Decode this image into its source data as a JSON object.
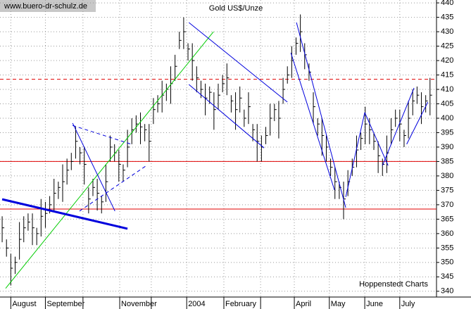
{
  "chart_data": {
    "type": "ohlc",
    "title": "Gold US$/Unze",
    "source": "www.buero-dr-schulz.de",
    "credit": "Hoppenstedt Charts",
    "color": "#000000",
    "high": [
      366,
      358,
      353,
      352,
      364,
      366,
      367,
      367,
      362,
      372,
      371,
      373,
      379,
      378,
      384,
      386,
      388,
      397,
      390,
      390,
      376,
      379,
      379,
      373,
      384,
      394,
      391,
      389,
      384,
      396,
      400,
      401,
      402,
      398,
      398,
      407,
      408,
      413,
      412,
      418,
      422,
      430,
      435,
      426,
      426,
      418,
      413,
      412,
      411,
      409,
      412,
      415,
      419,
      408,
      409,
      411,
      403,
      409,
      398,
      398,
      394,
      397,
      405,
      405,
      406,
      414,
      418,
      425,
      428,
      436,
      426,
      419,
      409,
      400,
      400,
      394,
      386,
      383,
      378,
      378,
      382,
      386,
      394,
      395,
      404,
      400,
      395,
      392,
      386,
      394,
      400,
      403,
      403,
      396,
      406,
      410,
      411,
      409,
      408,
      414
    ],
    "low": [
      357,
      352,
      342,
      346,
      351,
      357,
      361,
      356,
      356,
      359,
      362,
      367,
      368,
      372,
      371,
      377,
      382,
      386,
      384,
      377,
      367,
      373,
      368,
      367,
      371,
      385,
      385,
      378,
      378,
      383,
      391,
      395,
      391,
      392,
      385,
      398,
      402,
      402,
      406,
      405,
      413,
      424,
      424,
      420,
      413,
      409,
      407,
      401,
      405,
      396,
      403,
      409,
      408,
      402,
      396,
      402,
      397,
      398,
      392,
      385,
      385,
      391,
      394,
      399,
      393,
      405,
      412,
      414,
      422,
      423,
      417,
      413,
      398,
      394,
      387,
      385,
      380,
      372,
      372,
      365,
      373,
      380,
      383,
      389,
      391,
      391,
      389,
      381,
      380,
      381,
      391,
      397,
      392,
      390,
      393,
      401,
      405,
      398,
      402,
      401
    ],
    "close": [
      362,
      355,
      348,
      350,
      358,
      362,
      364,
      362,
      360,
      366,
      367,
      370,
      374,
      376,
      378,
      382,
      385,
      392,
      388,
      384,
      372,
      376,
      374,
      371,
      378,
      390,
      388,
      384,
      382,
      390,
      396,
      398,
      397,
      396,
      392,
      403,
      405,
      408,
      410,
      412,
      418,
      427,
      430,
      424,
      420,
      414,
      410,
      407,
      409,
      403,
      408,
      412,
      414,
      406,
      403,
      407,
      400,
      404,
      396,
      392,
      390,
      394,
      400,
      403,
      400,
      410,
      415,
      420,
      426,
      430,
      422,
      416,
      404,
      398,
      394,
      390,
      383,
      378,
      376,
      372,
      378,
      383,
      389,
      393,
      398,
      396,
      392,
      387,
      384,
      388,
      396,
      400,
      398,
      394,
      400,
      406,
      408,
      404,
      406,
      408
    ],
    "xlim": [
      -0.5,
      100.5
    ],
    "ylim": [
      338,
      441
    ],
    "xticks": [
      {
        "value": 2,
        "label": "August"
      },
      {
        "value": 10,
        "label": "September"
      },
      {
        "value": 18.7,
        "label": null
      },
      {
        "value": 27.2,
        "label": "November"
      },
      {
        "value": 34.5,
        "label": null
      },
      {
        "value": 42.7,
        "label": "2004"
      },
      {
        "value": 51.3,
        "label": "February"
      },
      {
        "value": 59.8,
        "label": null
      },
      {
        "value": 67.6,
        "label": "April"
      },
      {
        "value": 75.7,
        "label": "May"
      },
      {
        "value": 83.9,
        "label": "June"
      },
      {
        "value": 92,
        "label": "July"
      }
    ],
    "yticks": [
      340,
      345,
      350,
      355,
      360,
      365,
      370,
      375,
      380,
      385,
      390,
      395,
      400,
      405,
      410,
      415,
      420,
      425,
      430,
      435,
      440
    ],
    "grid": true,
    "hlines": [
      {
        "value": 385,
        "color": "#e00000",
        "dashed": false
      },
      {
        "value": 368.5,
        "color": "#e00000",
        "dashed": false
      },
      {
        "value": 413.5,
        "color": "#e00000",
        "dashed": true
      }
    ],
    "trendlines": [
      {
        "x": [
          0.8,
          48.9
        ],
        "y": [
          341,
          430
        ],
        "color": "#00cc00",
        "width": 1,
        "dashed": false
      },
      {
        "x": [
          0,
          29
        ],
        "y": [
          371.9,
          361.7
        ],
        "color": "#0000dd",
        "width": 3,
        "dashed": false
      },
      {
        "x": [
          16.3,
          26.1
        ],
        "y": [
          398.3,
          367.8
        ],
        "color": "#0000dd",
        "width": 1,
        "dashed": false
      },
      {
        "x": [
          43.2,
          66
        ],
        "y": [
          433.2,
          405.6
        ],
        "color": "#0000dd",
        "width": 1,
        "dashed": false
      },
      {
        "x": [
          43.2,
          60.6
        ],
        "y": [
          411.7,
          389.7
        ],
        "color": "#0000dd",
        "width": 1,
        "dashed": false
      },
      {
        "x": [
          68.1,
          79.5
        ],
        "y": [
          433.2,
          369
        ],
        "color": "#0000dd",
        "width": 1,
        "dashed": false
      },
      {
        "x": [
          66.8,
          76.9
        ],
        "y": [
          422.7,
          375.1
        ],
        "color": "#0000dd",
        "width": 1,
        "dashed": false
      },
      {
        "x": [
          79.5,
          83.9
        ],
        "y": [
          372.7,
          402
        ],
        "color": "#0000dd",
        "width": 1,
        "dashed": false
      },
      {
        "x": [
          83.9,
          89.3
        ],
        "y": [
          402,
          383.6
        ],
        "color": "#0000dd",
        "width": 1,
        "dashed": false
      },
      {
        "x": [
          88,
          95.3
        ],
        "y": [
          383.6,
          410.5
        ],
        "color": "#0000dd",
        "width": 1,
        "dashed": false
      },
      {
        "x": [
          93.6,
          98.5
        ],
        "y": [
          391,
          405.6
        ],
        "color": "#0000dd",
        "width": 1,
        "dashed": false
      },
      {
        "x": [
          16.3,
          30.1
        ],
        "y": [
          397.5,
          390.9
        ],
        "color": "#0000dd",
        "width": 1,
        "dashed": true
      },
      {
        "x": [
          17.9,
          33.4
        ],
        "y": [
          367.8,
          383.6
        ],
        "color": "#0000dd",
        "width": 1,
        "dashed": true
      }
    ]
  }
}
